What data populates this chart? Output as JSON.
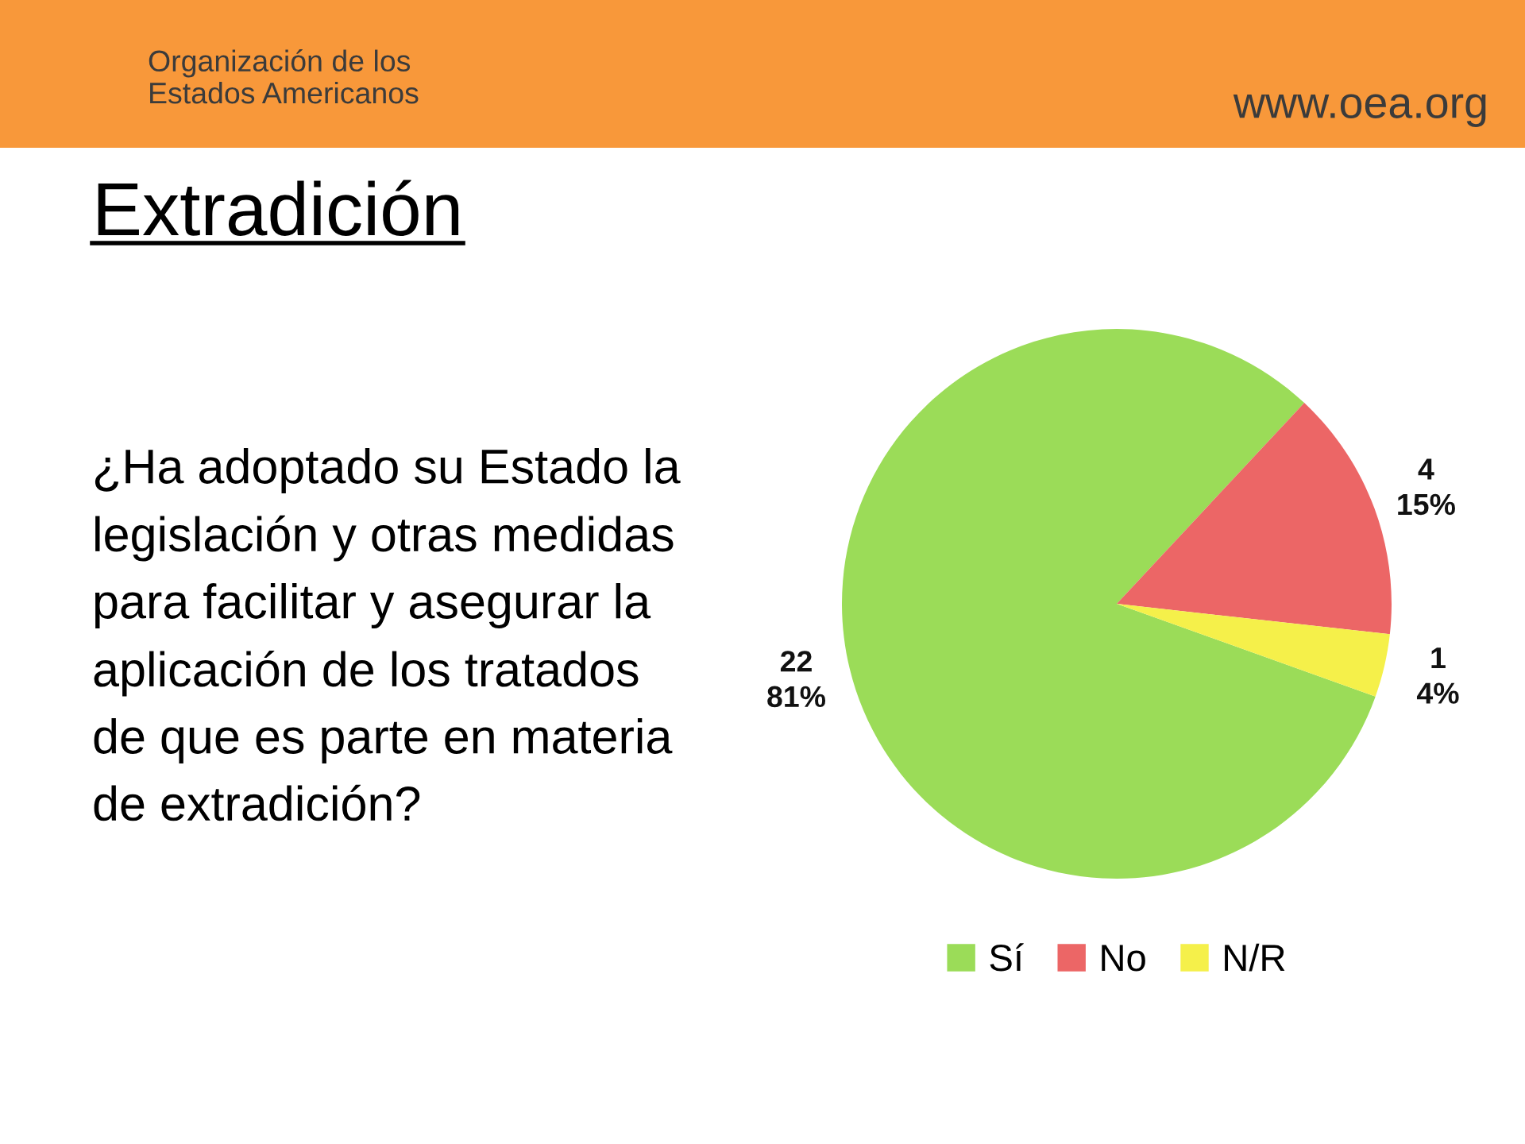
{
  "chart_data": {
    "type": "pie",
    "title": "Extradición",
    "subtitle": "¿Ha adoptado su Estado la legislación y otras medidas para facilitar y asegurar la aplicación de los tratados de que es parte en materia de extradición?",
    "categories": [
      "Sí",
      "No",
      "N/R"
    ],
    "values": [
      22,
      4,
      1
    ],
    "colors": [
      "#9bdc58",
      "#ec6666",
      "#f5f04a"
    ],
    "value_labels": [
      "22\n81%",
      "4\n15%",
      "1\n4%"
    ],
    "legend": "bottom",
    "annotations": [
      "Organización de los\nEstados Americanos",
      "www.oea.org"
    ]
  }
}
